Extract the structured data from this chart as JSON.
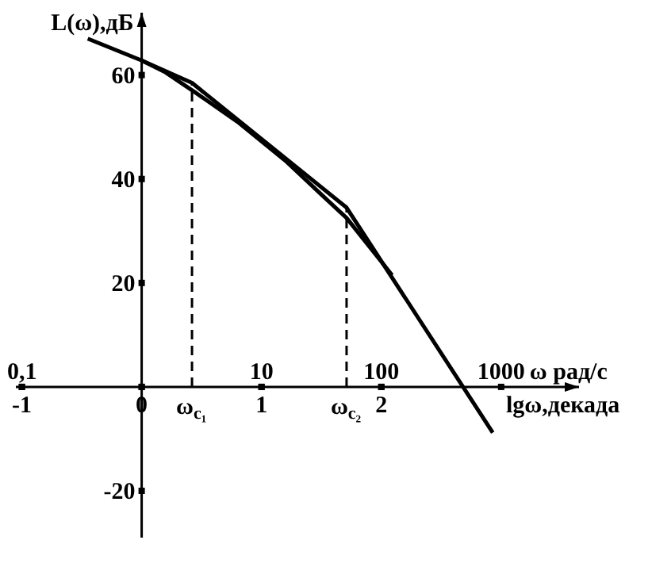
{
  "chart_data": {
    "type": "line",
    "xlabel": "lgω,декада",
    "x2label": "ω рад/с",
    "ylabel": "L(ω),дБ",
    "series": [
      {
        "color": "#000000",
        "x": [
          -0.45,
          0,
          0.42,
          1.71,
          2.93
        ],
        "values": [
          67,
          62.8,
          58.5,
          34.5,
          -8.8
        ]
      },
      {
        "color": "#000000",
        "x": [
          0,
          0.2,
          0.45,
          0.8,
          1.2,
          1.5,
          1.71,
          1.9,
          2.09
        ],
        "values": [
          62.8,
          60.5,
          56.6,
          51,
          43.5,
          37,
          32.5,
          27,
          21.5
        ]
      }
    ],
    "xlim": [
      -1.05,
      3.65
    ],
    "ylim": [
      -29,
      72
    ],
    "xticks": [
      -1,
      0,
      1,
      2
    ],
    "x2lim": [
      0.089,
      4467
    ],
    "x2ticks": [
      {
        "value": 0.1,
        "label": "0,1"
      },
      10,
      100,
      1000
    ],
    "log": "x2",
    "yticks": [
      -20,
      {
        "value": 0,
        "label": null
      },
      20,
      40,
      60
    ],
    "ref_lines": [
      {
        "axis": "x",
        "value": 0.42,
        "label": "ω$_{c₁}$",
        "line_style": "dashed"
      },
      {
        "axis": "x",
        "value": 1.71,
        "label": "ω$_{c₂}$",
        "line_style": "dashed"
      }
    ],
    "grid": false,
    "line_style": "solid",
    "marker": "none"
  }
}
